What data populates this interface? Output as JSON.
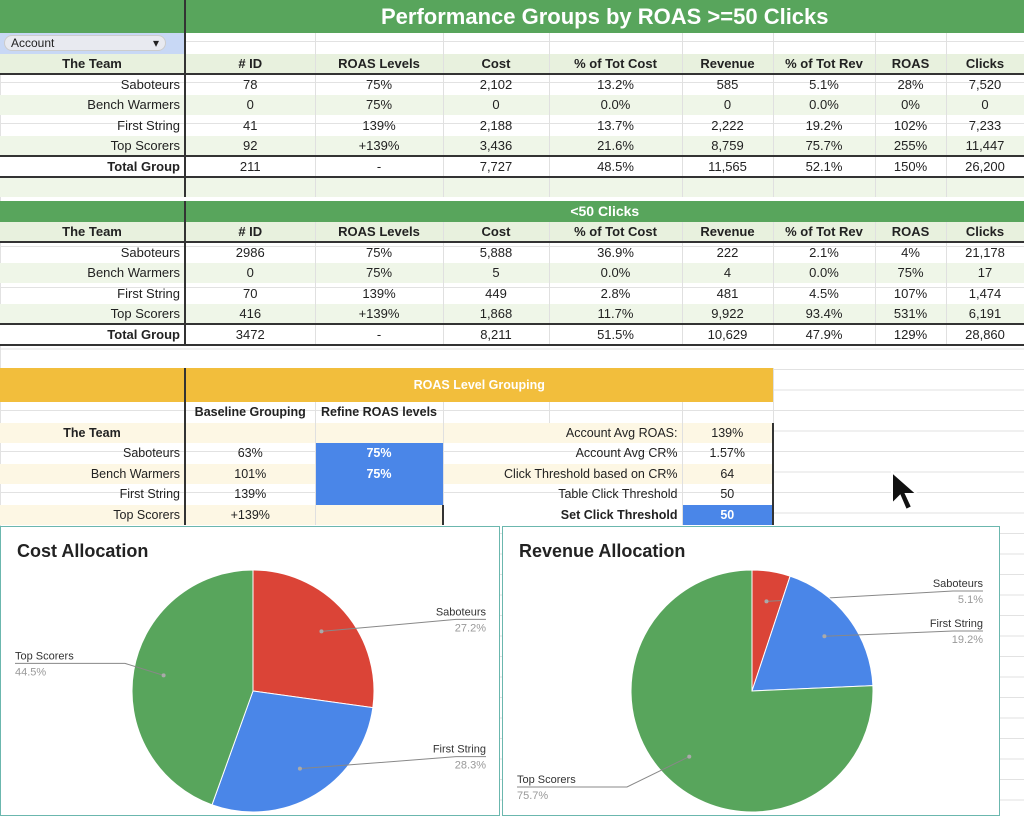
{
  "title": "Performance Groups by ROAS >=50 Clicks",
  "account_dropdown": "Account",
  "columns": [
    "The Team",
    "# ID",
    "ROAS Levels",
    "Cost",
    "% of Tot Cost",
    "Revenue",
    "% of Tot Rev",
    "ROAS",
    "Clicks"
  ],
  "table_ge50": {
    "rows": [
      [
        "Saboteurs",
        "78",
        "75%",
        "2,102",
        "13.2%",
        "585",
        "5.1%",
        "28%",
        "7,520"
      ],
      [
        "Bench Warmers",
        "0",
        "75%",
        "0",
        "0.0%",
        "0",
        "0.0%",
        "0%",
        "0"
      ],
      [
        "First String",
        "41",
        "139%",
        "2,188",
        "13.7%",
        "2,222",
        "19.2%",
        "102%",
        "7,233"
      ],
      [
        "Top Scorers",
        "92",
        "+139%",
        "3,436",
        "21.6%",
        "8,759",
        "75.7%",
        "255%",
        "11,447"
      ]
    ],
    "total": [
      "Total Group",
      "211",
      "-",
      "7,727",
      "48.5%",
      "11,565",
      "52.1%",
      "150%",
      "26,200"
    ]
  },
  "subtitle_lt50": "<50 Clicks",
  "table_lt50": {
    "rows": [
      [
        "Saboteurs",
        "2986",
        "75%",
        "5,888",
        "36.9%",
        "222",
        "2.1%",
        "4%",
        "21,178"
      ],
      [
        "Bench Warmers",
        "0",
        "75%",
        "5",
        "0.0%",
        "4",
        "0.0%",
        "75%",
        "17"
      ],
      [
        "First String",
        "70",
        "139%",
        "449",
        "2.8%",
        "481",
        "4.5%",
        "107%",
        "1,474"
      ],
      [
        "Top Scorers",
        "416",
        "+139%",
        "1,868",
        "11.7%",
        "9,922",
        "93.4%",
        "531%",
        "6,191"
      ]
    ],
    "total": [
      "Total Group",
      "3472",
      "-",
      "8,211",
      "51.5%",
      "10,629",
      "47.9%",
      "129%",
      "28,860"
    ]
  },
  "roas_grouping": {
    "title": "ROAS Level Grouping",
    "col_baseline": "Baseline Grouping",
    "col_refine": "Refine ROAS levels",
    "team_label": "The Team",
    "rows": [
      [
        "Saboteurs",
        "63%",
        "75%"
      ],
      [
        "Bench Warmers",
        "101%",
        "75%"
      ],
      [
        "First String",
        "139%",
        ""
      ],
      [
        "Top Scorers",
        "+139%",
        ""
      ]
    ],
    "metrics": [
      [
        "Account Avg ROAS:",
        "139%"
      ],
      [
        "Account Avg CR%",
        "1.57%"
      ],
      [
        "Click Threshold based on CR%",
        "64"
      ],
      [
        "Table Click Threshold",
        "50"
      ],
      [
        "Set Click Threshold",
        "50"
      ]
    ]
  },
  "chart_data": [
    {
      "type": "pie",
      "title": "Cost Allocation",
      "labels": [
        "Saboteurs",
        "Bench Warmers",
        "First String",
        "Top Scorers"
      ],
      "values": [
        27.2,
        0,
        28.3,
        44.5
      ],
      "colors": [
        "#db4437",
        "#f4b400",
        "#4a86e8",
        "#58a55c"
      ]
    },
    {
      "type": "pie",
      "title": "Revenue Allocation",
      "labels": [
        "Saboteurs",
        "Bench Warmers",
        "First String",
        "Top Scorers"
      ],
      "values": [
        5.1,
        0,
        19.2,
        75.7
      ],
      "colors": [
        "#db4437",
        "#f4b400",
        "#4a86e8",
        "#58a55c"
      ]
    }
  ]
}
